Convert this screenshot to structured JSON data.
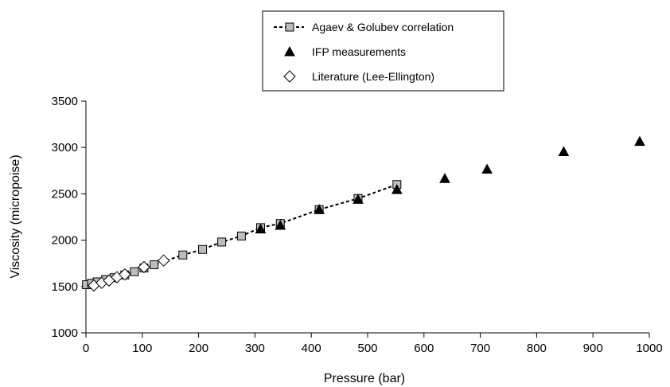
{
  "chart_data": {
    "type": "scatter",
    "title": "",
    "xlabel": "Pressure (bar)",
    "ylabel": "Viscosity (micropoise)",
    "xlim": [
      0,
      1000
    ],
    "ylim": [
      1000,
      3500
    ],
    "xticks": [
      0,
      100,
      200,
      300,
      400,
      500,
      600,
      700,
      800,
      900,
      1000
    ],
    "yticks": [
      1000,
      1500,
      2000,
      2500,
      3000,
      3500
    ],
    "grid": false,
    "legend_position": "top-center",
    "series": [
      {
        "name": "Agaev & Golubev correlation",
        "marker": "square",
        "line": "dashed",
        "color": "#bdbdbd",
        "x": [
          1,
          10,
          20,
          35,
          50,
          69,
          86,
          103,
          121,
          172,
          207,
          241,
          276,
          310,
          345,
          414,
          483,
          552
        ],
        "y": [
          1520,
          1535,
          1550,
          1575,
          1595,
          1625,
          1660,
          1700,
          1735,
          1840,
          1900,
          1980,
          2045,
          2135,
          2180,
          2330,
          2450,
          2600
        ]
      },
      {
        "name": "IFP measurements",
        "marker": "triangle",
        "line": "none",
        "color": "#000000",
        "x": [
          310,
          345,
          414,
          483,
          552,
          637,
          712,
          848,
          983
        ],
        "y": [
          2120,
          2160,
          2330,
          2440,
          2545,
          2665,
          2765,
          2955,
          3065
        ]
      },
      {
        "name": "Literature (Lee-Ellington)",
        "marker": "diamond",
        "line": "none",
        "color": "#ffffff",
        "x": [
          14,
          28,
          41,
          55,
          69,
          103,
          138
        ],
        "y": [
          1510,
          1540,
          1565,
          1600,
          1630,
          1710,
          1780
        ]
      }
    ]
  }
}
